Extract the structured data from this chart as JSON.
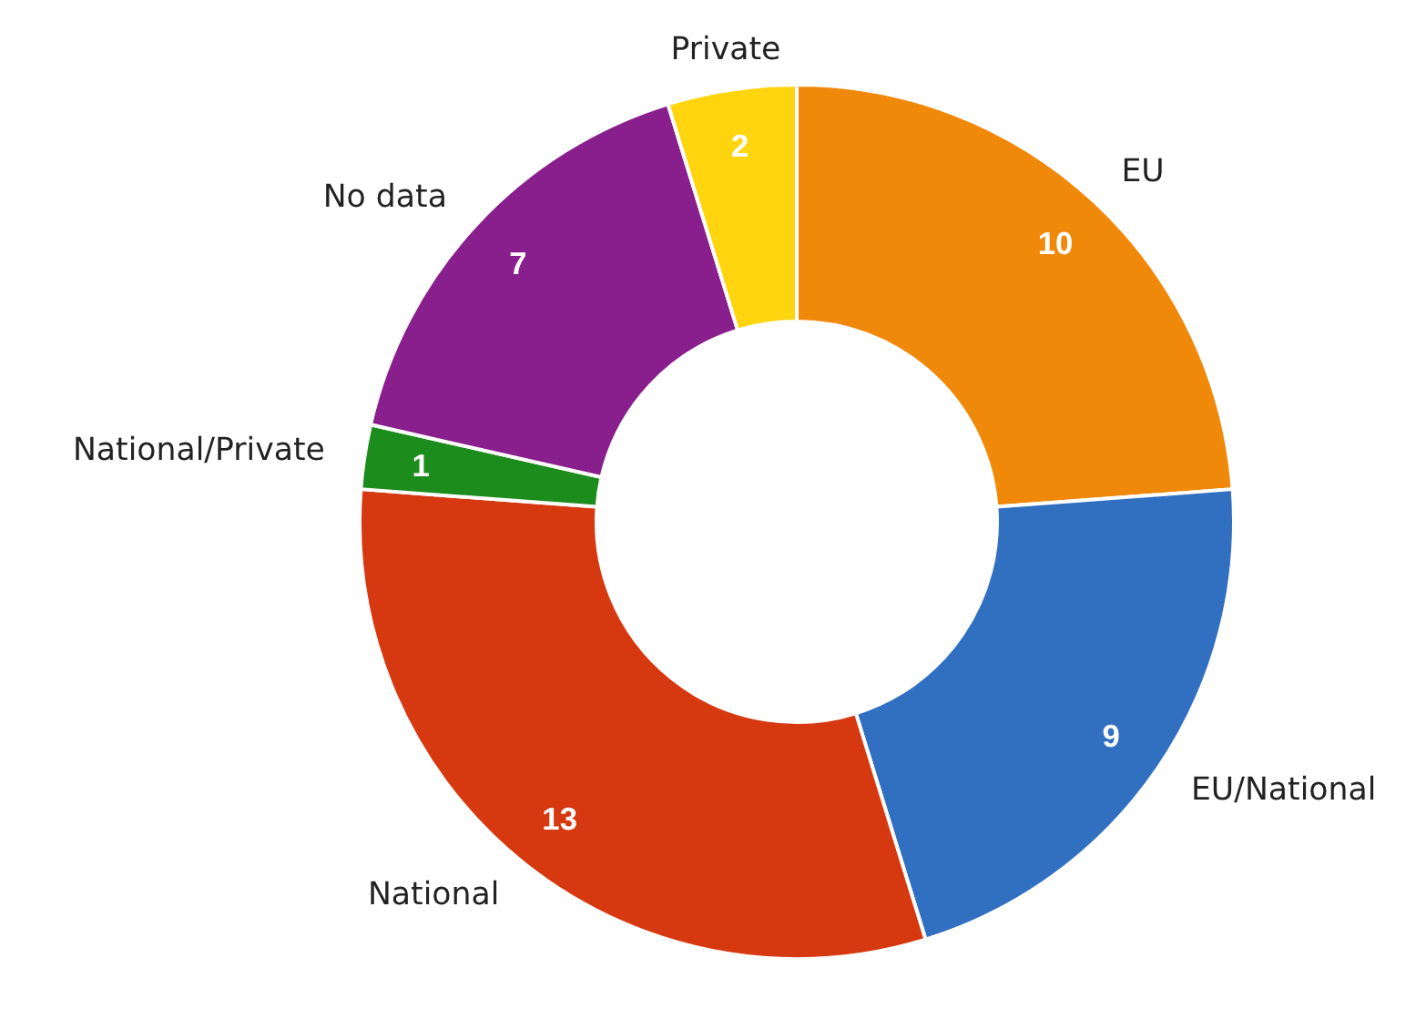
{
  "chart_data": {
    "type": "donut",
    "categories": [
      "EU",
      "EU/National",
      "National",
      "National/Private",
      "No data",
      "Private"
    ],
    "values": [
      10,
      9,
      13,
      1,
      7,
      2
    ],
    "colors": [
      "#f0890a",
      "#3170c0",
      "#d6380f",
      "#1c8c1c",
      "#891f8c",
      "#fed50e"
    ],
    "data_labels": true
  }
}
